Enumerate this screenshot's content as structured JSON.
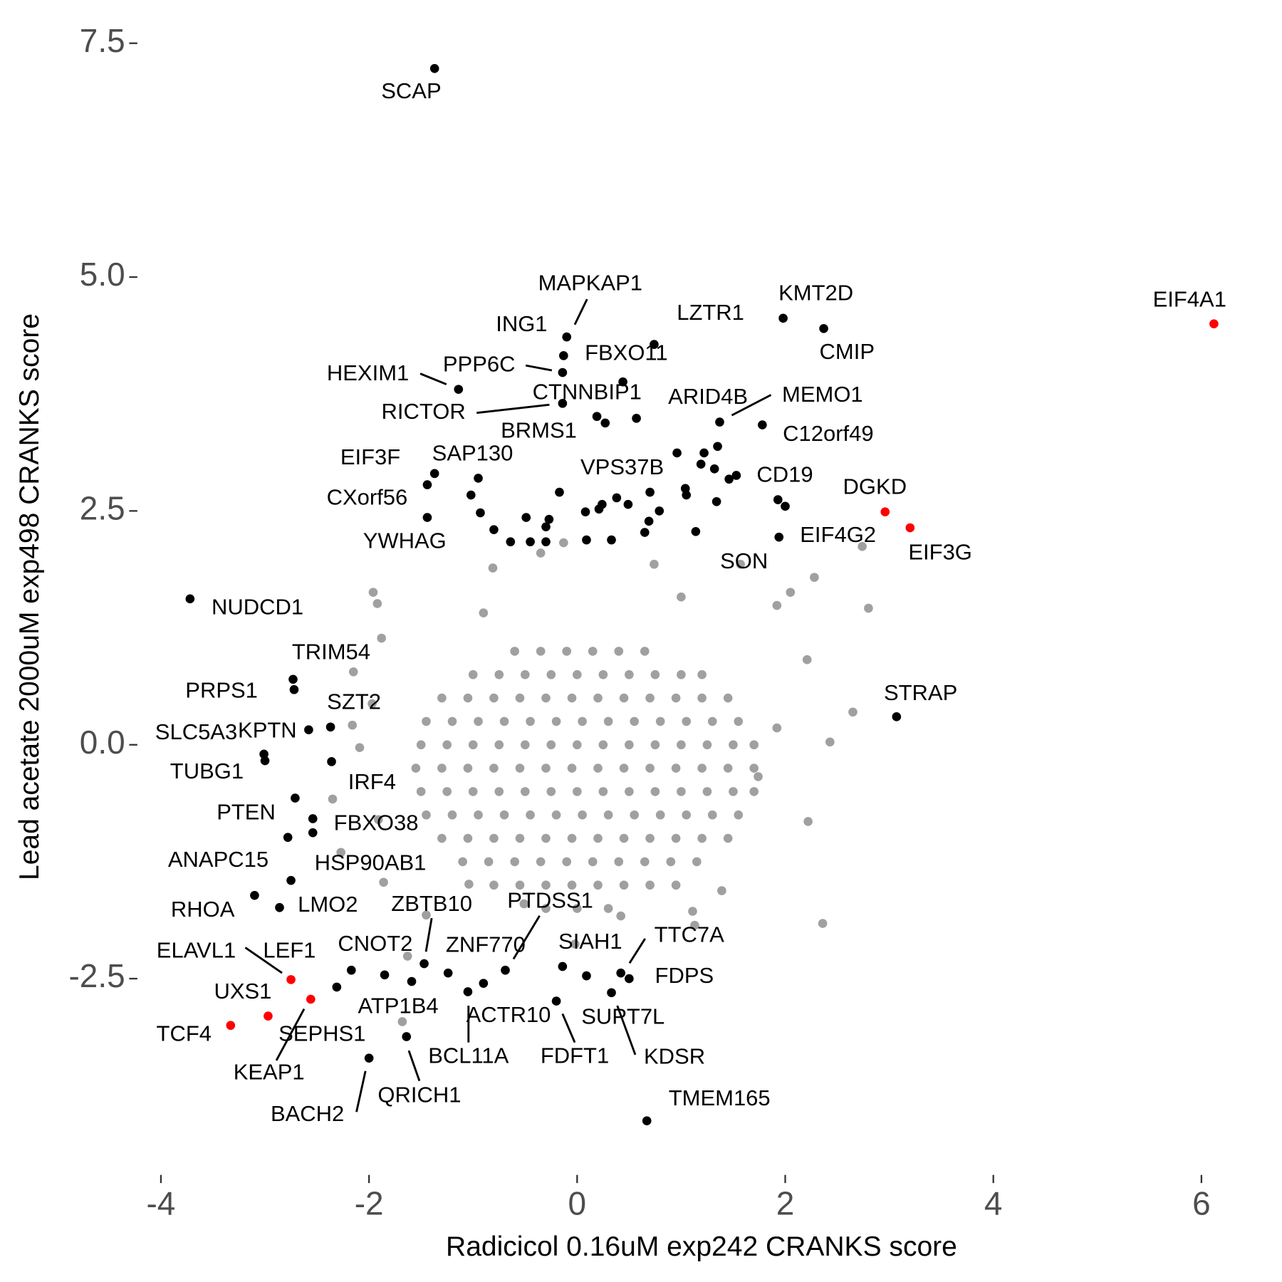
{
  "chart_data": {
    "type": "scatter",
    "x_label": "Radicicol 0.16uM exp242 CRANKS score",
    "y_label": "Lead acetate 2000uM exp498 CRANKS score",
    "xlim": [
      -4.25,
      6.24
    ],
    "ylim": [
      -4.55,
      7.7
    ],
    "xticks": [
      -4,
      -2,
      0,
      2,
      4,
      6
    ],
    "yticks": [
      {
        "value": -2.5,
        "label": "-2.5"
      },
      {
        "value": 0,
        "label": "0.0"
      },
      {
        "value": 2.5,
        "label": "2.5"
      },
      {
        "value": 5,
        "label": "5.0"
      },
      {
        "value": 7.5,
        "label": "7.5"
      }
    ],
    "grid": false,
    "series": [
      {
        "color": "#a0a0a0",
        "x": [
          -0.6,
          -0.35,
          -0.1,
          0.15,
          0.4,
          0.65,
          -1.0,
          -0.75,
          -0.5,
          -0.25,
          0,
          0.25,
          0.5,
          0.75,
          1.0,
          1.2,
          -1.3,
          -1.05,
          -0.8,
          -0.55,
          -0.3,
          -0.05,
          0.2,
          0.45,
          0.7,
          0.95,
          1.2,
          1.45,
          -1.45,
          -1.2,
          -0.95,
          -0.7,
          -0.45,
          -0.2,
          0.05,
          0.3,
          0.55,
          0.8,
          1.05,
          1.3,
          1.55,
          -1.5,
          -1.25,
          -1.0,
          -0.75,
          -0.5,
          -0.25,
          0,
          0.25,
          0.5,
          0.75,
          1.0,
          1.25,
          1.5,
          1.7,
          -1.55,
          -1.3,
          -1.05,
          -0.8,
          -0.55,
          -0.3,
          -0.05,
          0.2,
          0.45,
          0.7,
          0.95,
          1.2,
          1.45,
          1.7,
          -1.5,
          -1.25,
          -1.0,
          -0.75,
          -0.5,
          -0.25,
          0,
          0.25,
          0.5,
          0.75,
          1.0,
          1.25,
          1.5,
          1.7,
          -1.45,
          -1.2,
          -0.95,
          -0.7,
          -0.45,
          -0.2,
          0.05,
          0.3,
          0.55,
          0.8,
          1.05,
          1.3,
          1.55,
          -1.3,
          -1.05,
          -0.8,
          -0.55,
          -0.3,
          -0.05,
          0.2,
          0.45,
          0.7,
          0.95,
          1.2,
          1.45,
          -1.1,
          -0.85,
          -0.6,
          -0.35,
          -0.1,
          0.15,
          0.4,
          0.65,
          0.9,
          1.15,
          -0.8,
          -0.55,
          -0.3,
          -0.05,
          0.2,
          0.45,
          0.7,
          0.95,
          -0.3,
          0.0,
          0.3,
          -1.96,
          -1.92,
          -1.88,
          -2.15,
          -2.16,
          -2.09,
          -2.35,
          -2.27,
          -1.91,
          -1.68,
          -1.86,
          -1.45,
          2.8,
          2.28,
          2.74,
          2.65,
          2.43,
          2.22,
          2.36,
          2.21,
          2.05,
          1.92,
          -0.81,
          -0.35,
          -0.13,
          0.74,
          1.11,
          1.39,
          -0.51,
          -1.04,
          1.74,
          1.92,
          -1.63,
          -0.9,
          1.0,
          -1.97,
          1.57,
          1.13,
          0.42,
          -0.02
        ],
        "y": [
          1.0,
          1.0,
          1.0,
          1.0,
          1.0,
          1.0,
          0.75,
          0.75,
          0.75,
          0.75,
          0.75,
          0.75,
          0.75,
          0.75,
          0.75,
          0.75,
          0.5,
          0.5,
          0.5,
          0.5,
          0.5,
          0.5,
          0.5,
          0.5,
          0.5,
          0.5,
          0.5,
          0.5,
          0.25,
          0.25,
          0.25,
          0.25,
          0.25,
          0.25,
          0.25,
          0.25,
          0.25,
          0.25,
          0.25,
          0.25,
          0.25,
          0,
          0,
          0,
          0,
          0,
          0,
          0,
          0,
          0,
          0,
          0,
          0,
          0,
          0,
          -0.25,
          -0.25,
          -0.25,
          -0.25,
          -0.25,
          -0.25,
          -0.25,
          -0.25,
          -0.25,
          -0.25,
          -0.25,
          -0.25,
          -0.25,
          -0.25,
          -0.5,
          -0.5,
          -0.5,
          -0.5,
          -0.5,
          -0.5,
          -0.5,
          -0.5,
          -0.5,
          -0.5,
          -0.5,
          -0.5,
          -0.5,
          -0.5,
          -0.75,
          -0.75,
          -0.75,
          -0.75,
          -0.75,
          -0.75,
          -0.75,
          -0.75,
          -0.75,
          -0.75,
          -0.75,
          -0.75,
          -0.75,
          -1.0,
          -1.0,
          -1.0,
          -1.0,
          -1.0,
          -1.0,
          -1.0,
          -1.0,
          -1.0,
          -1.0,
          -1.0,
          -1.0,
          -1.25,
          -1.25,
          -1.25,
          -1.25,
          -1.25,
          -1.25,
          -1.25,
          -1.25,
          -1.25,
          -1.25,
          -1.5,
          -1.5,
          -1.5,
          -1.5,
          -1.5,
          -1.5,
          -1.5,
          -1.5,
          -1.75,
          -1.75,
          -1.75,
          1.63,
          1.51,
          1.14,
          0.78,
          0.21,
          -0.03,
          -0.58,
          -1.15,
          -0.8,
          -2.96,
          -1.47,
          -1.82,
          1.46,
          1.79,
          2.12,
          0.35,
          0.03,
          -0.82,
          -1.91,
          0.91,
          1.63,
          1.49,
          1.89,
          2.05,
          2.16,
          1.93,
          -1.78,
          -1.56,
          -1.7,
          -1.49,
          -0.34,
          0.18,
          -2.26,
          1.41,
          1.58,
          0.44,
          1.93,
          -1.93,
          -1.83,
          -2.13
        ]
      },
      {
        "color": "#000000",
        "x": [
          -1.02,
          -0.93,
          -0.8,
          -0.64,
          -0.49,
          -0.45,
          -0.3,
          -0.3,
          -0.27,
          -0.17,
          0.08,
          0.09,
          0.21,
          0.24,
          0.33,
          0.49,
          0.65,
          0.69,
          0.79,
          0.7,
          0.96,
          1.04,
          1.05,
          1.19,
          1.22,
          1.32,
          1.34,
          1.35,
          1.46,
          1.53,
          2.0,
          -2.54
        ],
        "y": [
          2.67,
          2.48,
          2.3,
          2.17,
          2.43,
          2.17,
          2.33,
          2.17,
          2.41,
          2.7,
          2.49,
          2.19,
          2.52,
          2.57,
          2.19,
          2.57,
          2.27,
          2.39,
          2.5,
          2.7,
          3.12,
          2.74,
          2.67,
          3.0,
          3.12,
          2.95,
          2.6,
          3.19,
          2.84,
          2.88,
          2.55,
          -0.94
        ]
      },
      {
        "color": "#000000",
        "labels": [
          "SCAP",
          "MAPKAP1",
          "ING1",
          "PPP6C",
          "LZTR1",
          "FBXO11",
          "HEXIM1",
          "RICTOR",
          "CTNNBIP1",
          "BRMS1",
          "ARID4B",
          "MEMO1",
          "C12orf49",
          "KMT2D",
          "CMIP",
          "EIF3F",
          "SAP130",
          "CXorf56",
          "YWHAG",
          "VPS37B",
          "CD19",
          "SON",
          "EIF4G2",
          "NUDCD1",
          "STRAP",
          "TRIM54",
          "PRPS1",
          "SZT2",
          "KPTN",
          "SLC5A3",
          "TUBG1",
          "IRF4",
          "PTEN",
          "FBXO38",
          "ANAPC15",
          "HSP90AB1",
          "RHOA",
          "LMO2",
          "LEF1",
          "SEPHS1",
          "CNOT2",
          "ATP1B4",
          "ZBTB10",
          "ZNF770",
          "BCL11A",
          "QRICH1",
          "BACH2",
          "PTDSS1",
          "SIAH1",
          "ACTR10",
          "FDFT1",
          "SUPT7L",
          "KDSR",
          "TTC7A",
          "FDPS",
          "TMEM165"
        ],
        "x": [
          -1.37,
          -0.1,
          -0.13,
          -0.14,
          0.74,
          0.44,
          -1.14,
          -0.14,
          0.19,
          0.27,
          0.57,
          1.37,
          1.78,
          1.98,
          2.37,
          -1.37,
          -0.95,
          -1.44,
          -1.44,
          0.38,
          1.93,
          1.14,
          1.94,
          -3.72,
          3.07,
          -2.73,
          -2.72,
          -2.37,
          -2.58,
          -3.01,
          -3.0,
          -2.36,
          -2.71,
          -2.54,
          -2.78,
          -2.75,
          -3.1,
          -2.86,
          -2.31,
          -2.17,
          -1.85,
          -1.59,
          -1.47,
          -1.24,
          -1.05,
          -1.64,
          -2.0,
          -0.69,
          -0.14,
          -0.9,
          -0.2,
          0.09,
          0.33,
          0.42,
          0.5,
          0.67
        ],
        "y": [
          7.23,
          4.36,
          4.16,
          3.98,
          4.28,
          3.88,
          3.8,
          3.65,
          3.51,
          3.44,
          3.49,
          3.45,
          3.42,
          4.56,
          4.45,
          2.9,
          2.85,
          2.78,
          2.43,
          2.64,
          2.62,
          2.28,
          2.22,
          1.56,
          0.3,
          0.7,
          0.59,
          0.19,
          0.16,
          -0.1,
          -0.17,
          -0.18,
          -0.57,
          -0.79,
          -0.99,
          -1.45,
          -1.61,
          -1.74,
          -2.59,
          -2.41,
          -2.46,
          -2.53,
          -2.34,
          -2.44,
          -2.64,
          -3.12,
          -3.35,
          -2.41,
          -2.37,
          -2.55,
          -2.74,
          -2.47,
          -2.65,
          -2.44,
          -2.5,
          -4.02
        ]
      },
      {
        "color": "#ff0000",
        "labels": [
          "EIF4A1",
          "DGKD",
          "EIF3G",
          "ELAVL1",
          "KEAP1",
          "UXS1",
          "TCF4"
        ],
        "x": [
          6.12,
          2.96,
          3.2,
          -2.75,
          -2.56,
          -2.97,
          -3.33
        ],
        "y": [
          4.5,
          2.49,
          2.32,
          -2.51,
          -2.72,
          -2.9,
          -3.0
        ]
      }
    ]
  }
}
